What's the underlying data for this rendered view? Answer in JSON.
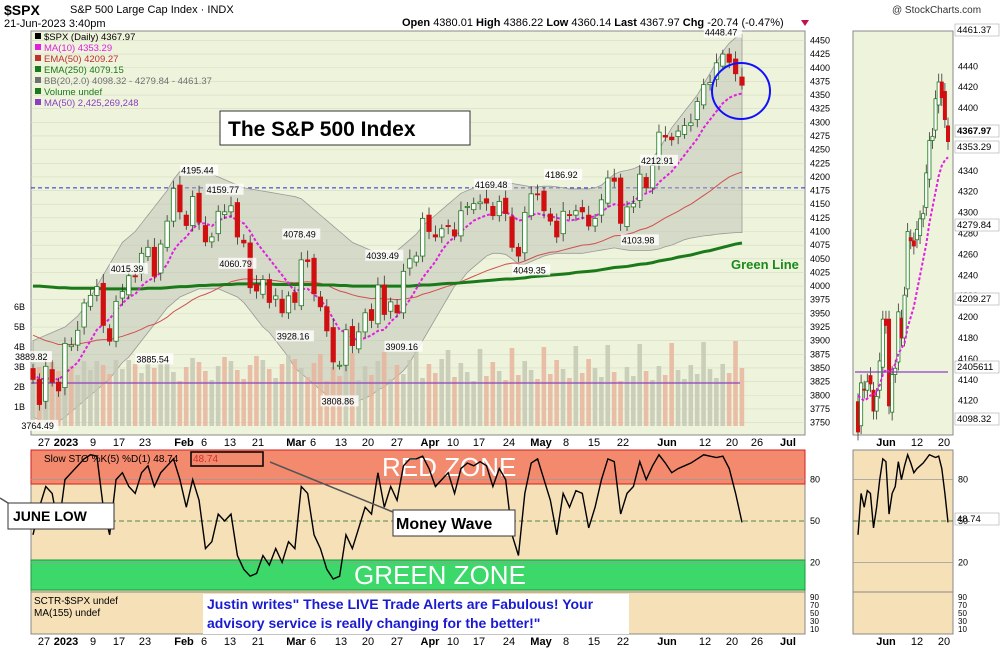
{
  "header": {
    "symbol": "$SPX",
    "name": "S&P 500 Large Cap Index",
    "exchange": "INDX",
    "date": "21-Jun-2023 3:40pm",
    "watermark": "@ StockCharts.com",
    "open_label": "Open",
    "open": "4380.01",
    "high_label": "High",
    "high": "4386.22",
    "low_label": "Low",
    "low": "4360.14",
    "last_label": "Last",
    "last": "4367.97",
    "chg_label": "Chg",
    "chg": "-20.74 (-0.47%)"
  },
  "legend": [
    {
      "text": "$SPX (Daily) 4367.97",
      "color": "#000000"
    },
    {
      "text": "MA(10) 4353.29",
      "color": "#e020e0"
    },
    {
      "text": "EMA(50) 4209.27",
      "color": "#c03030"
    },
    {
      "text": "EMA(250) 4079.15",
      "color": "#1a7a1a"
    },
    {
      "text": "BB(20,2.0) 4098.32 - 4279.84 - 4461.37",
      "color": "#707070"
    },
    {
      "text": "Volume undef",
      "color": "#1a7a1a"
    },
    {
      "text": "MA(50) 2,425,269,248",
      "color": "#8a40c0"
    }
  ],
  "annotations": {
    "title_box": "The S&P 500 Index",
    "green_line": "Green Line",
    "red_zone": "RED ZONE",
    "green_zone": "GREEN ZONE",
    "money_wave": "Money Wave",
    "june_low": "JUNE LOW",
    "testimonial": "Justin writes\" These LIVE Trade Alerts are Fabulous! Your advisory service is really changing for the better!\""
  },
  "price_labels": [
    {
      "text": "4448.47",
      "x": "Jun 15",
      "y": 4448
    },
    {
      "text": "4212.91",
      "x": "Jun 1",
      "y": 4213
    },
    {
      "text": "4195.44",
      "x": "Feb 2",
      "y": 4195
    },
    {
      "text": "4186.92",
      "x": "May 1",
      "y": 4187
    },
    {
      "text": "4169.48",
      "x": "Apr 18",
      "y": 4169
    },
    {
      "text": "4159.77",
      "x": "Feb 9",
      "y": 4160
    },
    {
      "text": "4103.98",
      "x": "May 31",
      "y": 4104
    },
    {
      "text": "4078.49",
      "x": "Mar 6",
      "y": 4078
    },
    {
      "text": "4060.79",
      "x": "Feb 10",
      "y": 4061
    },
    {
      "text": "4049.35",
      "x": "May 4",
      "y": 4049
    },
    {
      "text": "4039.49",
      "x": "Mar 21",
      "y": 4039
    },
    {
      "text": "4015.39",
      "x": "Jan 13",
      "y": 4015
    },
    {
      "text": "3928.16",
      "x": "Mar 2",
      "y": 3928
    },
    {
      "text": "3909.16",
      "x": "Mar 24",
      "y": 3909
    },
    {
      "text": "3885.54",
      "x": "Jan 19",
      "y": 3886
    },
    {
      "text": "3808.86",
      "x": "Mar 13",
      "y": 3809
    },
    {
      "text": "3889.82",
      "x": "Dec 27",
      "y": 3890
    },
    {
      "text": "3764.49",
      "x": "Dec 28",
      "y": 3764
    }
  ],
  "side_labels": [
    "4461.37",
    "4367.97",
    "4353.29",
    "4279.84",
    "4209.27",
    "2405611",
    "4098.32",
    "48.74"
  ],
  "sto_legend": "Slow STO %K(5) %D(1) 48.74",
  "sto_value": "48.74",
  "sctr_legend": "SCTR-$SPX undef",
  "sctr_ma": "MA(155) undef",
  "chart_data": {
    "type": "line",
    "main": {
      "yticks": [
        3750,
        3775,
        3800,
        3825,
        3850,
        3875,
        3900,
        3925,
        3950,
        3975,
        4000,
        4025,
        4050,
        4075,
        4100,
        4125,
        4150,
        4175,
        4200,
        4225,
        4250,
        4275,
        4300,
        4325,
        4350,
        4375,
        4400,
        4425,
        4450
      ],
      "ylim": [
        3740,
        4460
      ],
      "volume_ticks": [
        "6B",
        "5B",
        "4B",
        "3B",
        "2B",
        "1B"
      ],
      "xticks": [
        "27",
        "2023",
        "9",
        "17",
        "23",
        "Feb",
        "6",
        "13",
        "21",
        "Mar",
        "6",
        "13",
        "20",
        "27",
        "Apr",
        "10",
        "17",
        "24",
        "May",
        "8",
        "15",
        "22",
        "Jun",
        "12",
        "20",
        "26",
        "Jul"
      ],
      "horizontal_line": 4180,
      "close": [
        3829,
        3783,
        3853,
        3824,
        3808,
        3895,
        3892,
        3919,
        3969,
        3983,
        3999,
        3928,
        3899,
        3972,
        3990,
        4019,
        4017,
        4060,
        4071,
        4018,
        4077,
        4119,
        4179,
        4136,
        4111,
        4164,
        4117,
        4081,
        4090,
        4137,
        4136,
        4147,
        4090,
        4079,
        3997,
        3991,
        4012,
        3970,
        3982,
        3951,
        3982,
        3970,
        4048,
        4045,
        3986,
        3962,
        3918,
        3861,
        3855,
        3920,
        3891,
        3916,
        3951,
        3937,
        4002,
        3948,
        3971,
        3951,
        4027,
        4050,
        4055,
        4124,
        4100,
        4090,
        4105,
        4109,
        4092,
        4138,
        4146,
        4151,
        4154,
        4152,
        4129,
        4155,
        4133,
        4071,
        4055,
        4135,
        4169,
        4168,
        4138,
        4119,
        4090,
        4137,
        4130,
        4138,
        4136,
        4110,
        4124,
        4158,
        4198,
        4192,
        4115,
        4145,
        4151,
        4205,
        4180,
        4221,
        4282,
        4273,
        4268,
        4284,
        4294,
        4299,
        4338,
        4369,
        4373,
        4409,
        4425,
        4410,
        4389,
        4368
      ],
      "ma10": [
        3840,
        3830,
        3830,
        3832,
        3828,
        3840,
        3850,
        3860,
        3880,
        3900,
        3920,
        3930,
        3940,
        3955,
        3968,
        3980,
        3985,
        4000,
        4010,
        4015,
        4025,
        4040,
        4065,
        4080,
        4090,
        4105,
        4115,
        4115,
        4110,
        4120,
        4125,
        4128,
        4120,
        4115,
        4100,
        4080,
        4065,
        4050,
        4035,
        4020,
        4005,
        3990,
        3995,
        3995,
        3985,
        3975,
        3960,
        3940,
        3920,
        3915,
        3905,
        3900,
        3905,
        3910,
        3918,
        3920,
        3935,
        3945,
        3960,
        3975,
        3995,
        4015,
        4030,
        4045,
        4065,
        4080,
        4090,
        4100,
        4110,
        4120,
        4125,
        4130,
        4132,
        4135,
        4135,
        4130,
        4120,
        4122,
        4130,
        4133,
        4130,
        4128,
        4125,
        4122,
        4120,
        4122,
        4125,
        4125,
        4128,
        4135,
        4145,
        4150,
        4148,
        4150,
        4155,
        4165,
        4170,
        4175,
        4190,
        4200,
        4210,
        4225,
        4240,
        4255,
        4270,
        4290,
        4305,
        4320,
        4335,
        4345,
        4350,
        4353
      ],
      "ema50": [
        3910,
        3905,
        3900,
        3897,
        3893,
        3893,
        3893,
        3894,
        3896,
        3898,
        3901,
        3902,
        3902,
        3905,
        3908,
        3912,
        3916,
        3921,
        3927,
        3930,
        3936,
        3943,
        3953,
        3960,
        3967,
        3975,
        3981,
        3985,
        3990,
        3996,
        4002,
        4008,
        4011,
        4013,
        4013,
        4012,
        4012,
        4011,
        4010,
        4008,
        4007,
        4006,
        4007,
        4008,
        4007,
        4005,
        4002,
        3996,
        3991,
        3988,
        3984,
        3981,
        3979,
        3977,
        3978,
        3976,
        3976,
        3975,
        3976,
        3978,
        3980,
        3985,
        3988,
        3992,
        3996,
        4000,
        4003,
        4008,
        4013,
        4018,
        4023,
        4028,
        4032,
        4036,
        4040,
        4042,
        4042,
        4046,
        4051,
        4056,
        4059,
        4062,
        4063,
        4066,
        4069,
        4072,
        4075,
        4076,
        4078,
        4082,
        4087,
        4092,
        4093,
        4095,
        4098,
        4103,
        4106,
        4111,
        4118,
        4125,
        4131,
        4137,
        4144,
        4150,
        4158,
        4166,
        4174,
        4183,
        4192,
        4200,
        4205,
        4209
      ],
      "ema250": [
        4000,
        4000,
        3999,
        3998,
        3997,
        3997,
        3996,
        3996,
        3996,
        3996,
        3996,
        3995,
        3995,
        3995,
        3995,
        3995,
        3995,
        3995,
        3996,
        3996,
        3996,
        3997,
        3998,
        3999,
        3999,
        4000,
        4001,
        4001,
        4002,
        4002,
        4003,
        4003,
        4004,
        4004,
        4004,
        4004,
        4004,
        4004,
        4003,
        4003,
        4003,
        4003,
        4003,
        4003,
        4003,
        4002,
        4002,
        4002,
        4001,
        4001,
        4000,
        4000,
        4000,
        4000,
        4000,
        4000,
        4000,
        4000,
        4000,
        4000,
        4001,
        4002,
        4002,
        4003,
        4004,
        4005,
        4005,
        4006,
        4007,
        4008,
        4009,
        4010,
        4011,
        4012,
        4013,
        4013,
        4014,
        4015,
        4017,
        4018,
        4019,
        4020,
        4021,
        4022,
        4023,
        4025,
        4026,
        4027,
        4028,
        4030,
        4032,
        4034,
        4035,
        4036,
        4038,
        4040,
        4041,
        4043,
        4046,
        4048,
        4050,
        4053,
        4055,
        4057,
        4060,
        4063,
        4065,
        4068,
        4071,
        4074,
        4077,
        4079
      ],
      "bb_upper": [
        3900,
        3905,
        3910,
        3915,
        3920,
        3925,
        3935,
        3945,
        3960,
        3980,
        4000,
        4020,
        4040,
        4060,
        4080,
        4090,
        4100,
        4115,
        4130,
        4145,
        4160,
        4175,
        4195,
        4210,
        4215,
        4215,
        4215,
        4212,
        4205,
        4200,
        4195,
        4190,
        4185,
        4180,
        4178,
        4176,
        4174,
        4172,
        4170,
        4168,
        4166,
        4164,
        4160,
        4150,
        4140,
        4130,
        4120,
        4110,
        4100,
        4090,
        4080,
        4075,
        4070,
        4065,
        4060,
        4060,
        4060,
        4065,
        4075,
        4085,
        4095,
        4110,
        4120,
        4130,
        4140,
        4150,
        4160,
        4170,
        4175,
        4180,
        4180,
        4182,
        4185,
        4186,
        4187,
        4188,
        4186,
        4184,
        4182,
        4182,
        4183,
        4183,
        4182,
        4180,
        4178,
        4178,
        4178,
        4178,
        4180,
        4185,
        4195,
        4205,
        4210,
        4212,
        4215,
        4220,
        4225,
        4235,
        4250,
        4270,
        4290,
        4305,
        4320,
        4335,
        4350,
        4370,
        4390,
        4410,
        4430,
        4445,
        4455,
        4461
      ],
      "bb_lower": [
        3760,
        3755,
        3750,
        3750,
        3752,
        3760,
        3770,
        3780,
        3790,
        3800,
        3810,
        3820,
        3830,
        3845,
        3860,
        3870,
        3885,
        3900,
        3915,
        3930,
        3945,
        3960,
        3970,
        3980,
        3985,
        3990,
        3995,
        3995,
        3995,
        3995,
        3990,
        3985,
        3980,
        3970,
        3955,
        3940,
        3925,
        3915,
        3900,
        3885,
        3870,
        3850,
        3840,
        3830,
        3820,
        3810,
        3800,
        3790,
        3785,
        3785,
        3785,
        3790,
        3795,
        3800,
        3810,
        3815,
        3825,
        3835,
        3845,
        3860,
        3880,
        3900,
        3920,
        3940,
        3960,
        3980,
        4000,
        4010,
        4025,
        4035,
        4045,
        4055,
        4060,
        4060,
        4058,
        4050,
        4040,
        4040,
        4045,
        4050,
        4055,
        4058,
        4060,
        4060,
        4060,
        4060,
        4060,
        4062,
        4064,
        4066,
        4068,
        4070,
        4068,
        4066,
        4065,
        4065,
        4065,
        4066,
        4068,
        4072,
        4075,
        4080,
        4085,
        4088,
        4090,
        4092,
        4093,
        4095,
        4096,
        4097,
        4098,
        4098
      ]
    },
    "stochastic": {
      "yticks": [
        20,
        50,
        80
      ],
      "ylim": [
        0,
        100
      ],
      "red_zone": [
        80,
        100
      ],
      "green_zone": [
        0,
        20
      ],
      "k": [
        40,
        60,
        75,
        70,
        45,
        80,
        85,
        90,
        95,
        98,
        97,
        60,
        40,
        80,
        85,
        75,
        70,
        85,
        90,
        75,
        85,
        90,
        95,
        80,
        60,
        80,
        65,
        30,
        35,
        55,
        50,
        55,
        25,
        15,
        10,
        12,
        25,
        18,
        30,
        20,
        35,
        30,
        75,
        70,
        40,
        30,
        15,
        8,
        10,
        40,
        30,
        45,
        60,
        55,
        85,
        60,
        75,
        65,
        90,
        95,
        95,
        97,
        88,
        75,
        80,
        85,
        70,
        88,
        92,
        90,
        93,
        90,
        75,
        88,
        80,
        40,
        25,
        70,
        92,
        95,
        80,
        65,
        40,
        70,
        60,
        72,
        70,
        45,
        60,
        80,
        95,
        93,
        55,
        70,
        75,
        93,
        80,
        90,
        98,
        92,
        85,
        88,
        90,
        92,
        95,
        98,
        97,
        96,
        97,
        88,
        70,
        49
      ],
      "sctr_ticks": [
        90,
        70,
        50,
        30,
        10
      ]
    }
  }
}
